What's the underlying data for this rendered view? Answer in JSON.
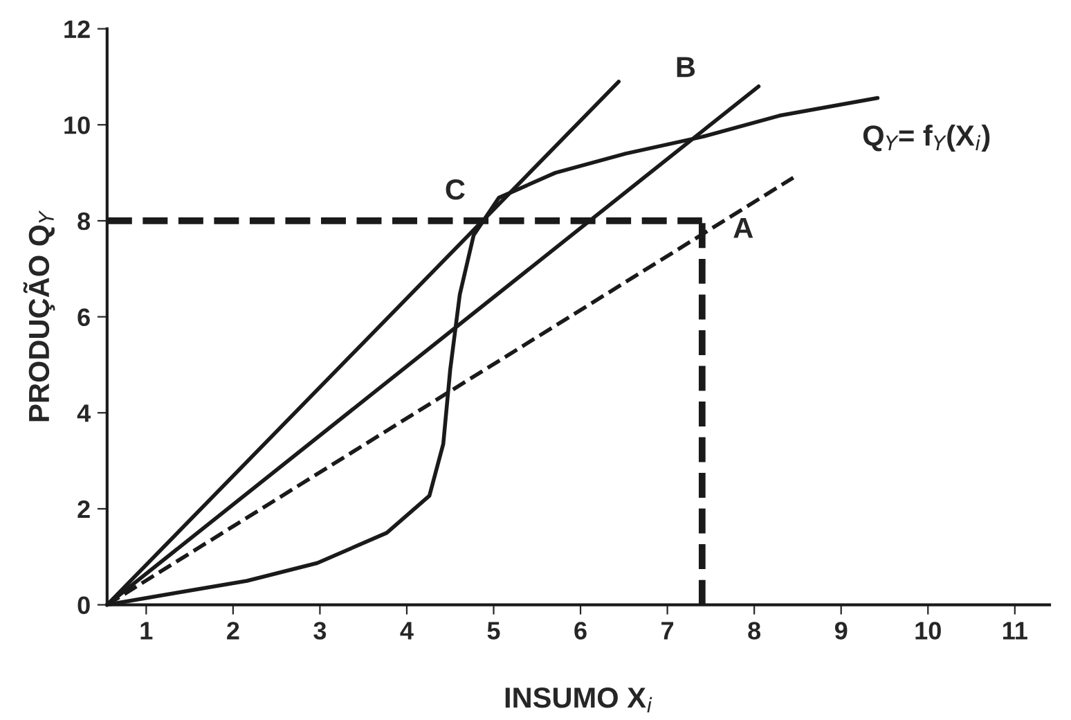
{
  "chart_data": {
    "type": "line",
    "xlabel": "INSUMO X$_{i}$",
    "ylabel": "PRODUÇÃO Q$_{Y}$",
    "xlim": [
      0.55,
      11.4
    ],
    "ylim": [
      0,
      12
    ],
    "xticks": [
      1,
      2,
      3,
      4,
      5,
      6,
      7,
      8,
      9,
      10,
      11
    ],
    "yticks": [
      0,
      2,
      4,
      6,
      8,
      10,
      12
    ],
    "grid": false,
    "marker": "none",
    "series": [
      {
        "color": "#1a1a1a",
        "line_style": "solid",
        "x": [
          0.55,
          1.35,
          2.16,
          2.97,
          3.77,
          4.26,
          4.42,
          4.5,
          4.61,
          4.77,
          5.06,
          5.71,
          6.52,
          7.4,
          8.29,
          9.42
        ],
        "values": [
          0,
          0.25,
          0.5,
          0.87,
          1.5,
          2.27,
          3.35,
          4.9,
          6.46,
          7.7,
          8.48,
          9.0,
          9.4,
          9.75,
          10.19,
          10.56
        ]
      },
      {
        "color": "#1a1a1a",
        "line_style": "solid",
        "x": [
          0.55,
          6.44
        ],
        "values": [
          0,
          10.9
        ]
      },
      {
        "color": "#1a1a1a",
        "line_style": "solid",
        "x": [
          0.55,
          8.05
        ],
        "values": [
          0,
          10.8
        ]
      },
      {
        "color": "#1a1a1a",
        "line_style": "dashed",
        "x": [
          0.55,
          8.45
        ],
        "values": [
          0,
          8.9
        ]
      },
      {
        "color": "#1a1a1a",
        "line_style": "dashed",
        "x": [
          0.55,
          7.4
        ],
        "values": [
          8,
          8
        ]
      },
      {
        "color": "#1a1a1a",
        "line_style": "dashed",
        "x": [
          7.4,
          7.4
        ],
        "values": [
          0,
          8
        ]
      }
    ],
    "annotations": [
      {
        "text": "C",
        "x": 4.88,
        "y": 8
      },
      {
        "text": "B",
        "x": 7.4,
        "y": 9.75
      },
      {
        "text": "A",
        "x": 7.4,
        "y": 8
      },
      {
        "text": "Q$_{Y}$= f$_{Y}$(X$_{i}$)",
        "x": 9.42,
        "y": 10.56
      }
    ]
  }
}
